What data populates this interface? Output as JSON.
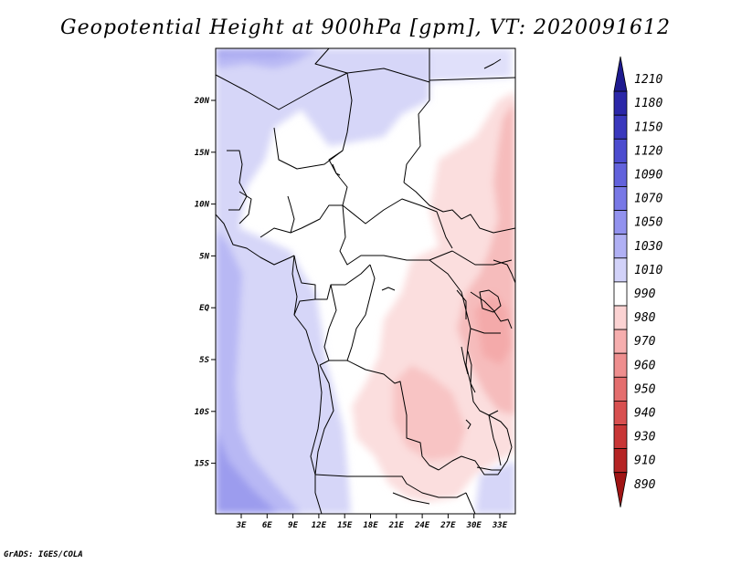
{
  "title": "Geopotential Height at 900hPa [gpm], VT: 2020091612",
  "credit": "GrADS: IGES/COLA",
  "map": {
    "variable": "Geopotential Height",
    "level": "900hPa",
    "units": "gpm",
    "valid_time": "2020091612",
    "lat_labels": [
      "20N",
      "15N",
      "10N",
      "5N",
      "EQ",
      "5S",
      "10S",
      "15S"
    ],
    "lon_labels": [
      "3E",
      "6E",
      "9E",
      "12E",
      "15E",
      "18E",
      "21E",
      "24E",
      "27E",
      "30E",
      "33E"
    ]
  },
  "legend": {
    "levels": [
      "1210",
      "1180",
      "1150",
      "1120",
      "1090",
      "1070",
      "1050",
      "1030",
      "1010",
      "990",
      "980",
      "970",
      "960",
      "950",
      "940",
      "930",
      "910",
      "890"
    ],
    "colors": [
      "#1e1a8f",
      "#2b27a8",
      "#3a38bd",
      "#4c4ccf",
      "#6262dc",
      "#7878e6",
      "#9292ee",
      "#b0b0f4",
      "#d2d2f9",
      "#ffffff",
      "#fbd2d2",
      "#f6aeae",
      "#ee8e8e",
      "#e46e6e",
      "#d85050",
      "#c83636",
      "#b52424",
      "#a01414"
    ]
  }
}
